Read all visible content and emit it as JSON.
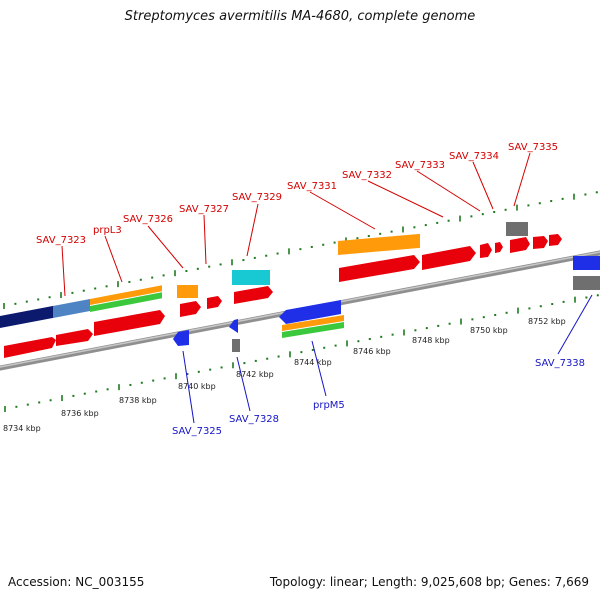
{
  "title": "Streptomyces avermitilis MA-4680, complete genome",
  "footer": {
    "accession": "Accession: NC_003155",
    "topology": "Topology: linear; Length: 9,025,608 bp; Genes: 7,669"
  },
  "colors": {
    "red_gene": "#e8000a",
    "blue_gene": "#1f2fe8",
    "orange_gene": "#ff9a0a",
    "green_gene": "#3cc83c",
    "cyan_gene": "#18c8d2",
    "gray_gene": "#6f6f6f",
    "navy_gene": "#0c1a6e",
    "steel_gene": "#4f84c4",
    "tick_green": "#1e7a1e",
    "label_red": "#d40000",
    "label_blue": "#1515c8",
    "backbone": "#8f8f8f"
  },
  "scale_labels": [
    "8734 kbp",
    "8736 kbp",
    "8738 kbp",
    "8740 kbp",
    "8742 kbp",
    "8744 kbp",
    "8746 kbp",
    "8748 kbp",
    "8750 kbp",
    "8752 kbp"
  ],
  "upper_labels": [
    "SAV_7323",
    "prpL3",
    "SAV_7326",
    "SAV_7327",
    "SAV_7329",
    "SAV_7331",
    "SAV_7332",
    "SAV_7333",
    "SAV_7334",
    "SAV_7335"
  ],
  "lower_labels": [
    "SAV_7325",
    "SAV_7328",
    "prpM5",
    "SAV_7338"
  ]
}
